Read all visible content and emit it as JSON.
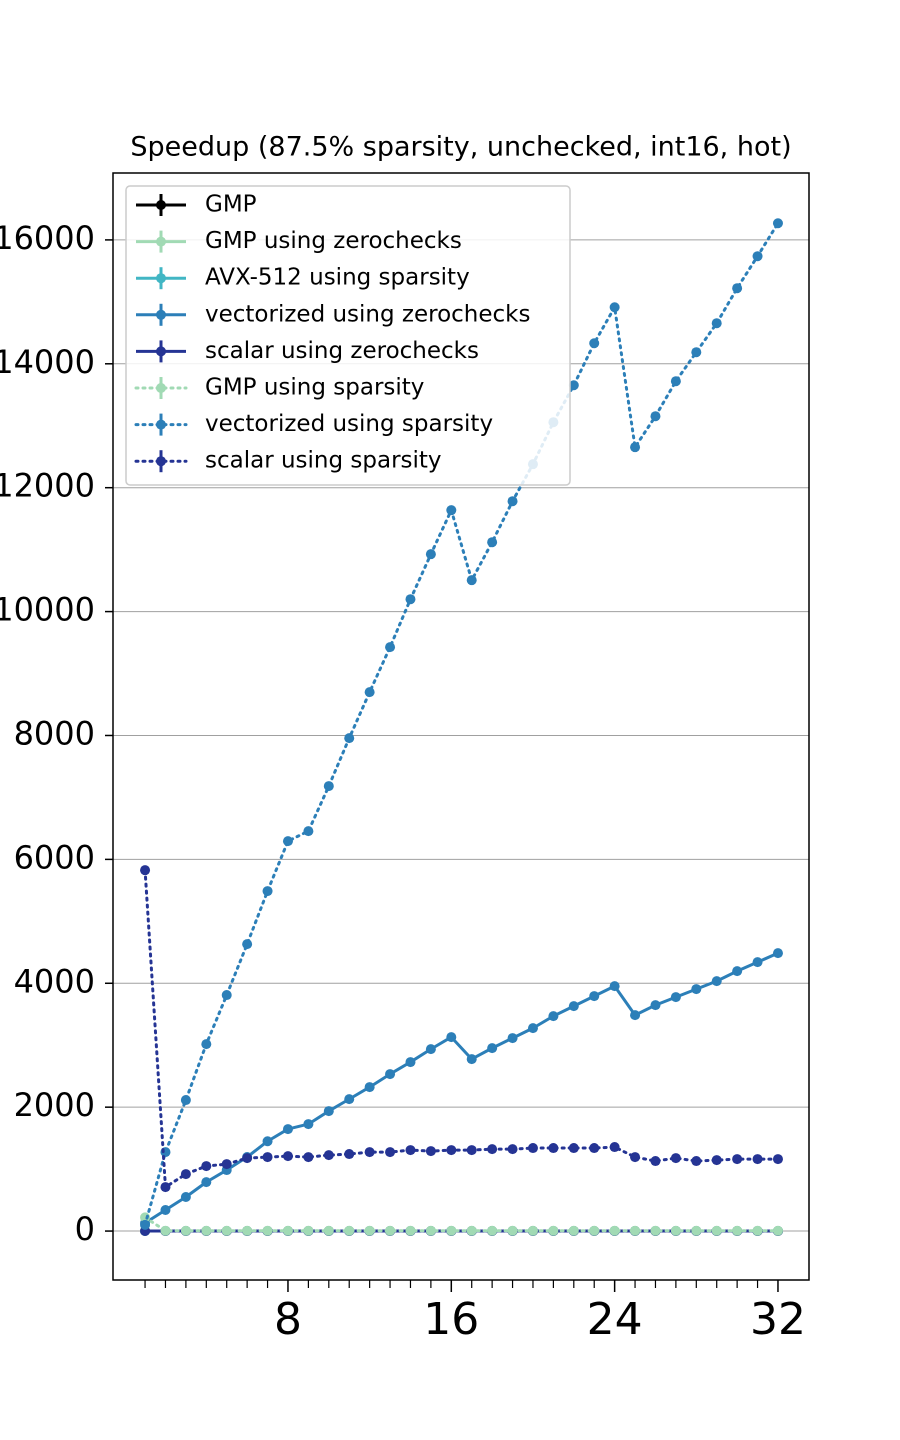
{
  "chart_data": {
    "type": "line",
    "title": "Speedup (87.5% sparsity, unchecked, int16, hot)",
    "x": [
      1,
      2,
      3,
      4,
      5,
      6,
      7,
      8,
      9,
      10,
      11,
      12,
      13,
      14,
      15,
      16,
      17,
      18,
      19,
      20,
      21,
      22,
      23,
      24,
      25,
      26,
      27,
      28,
      29,
      30,
      31,
      32
    ],
    "xlim": [
      -0.57,
      33.52
    ],
    "xticks": [
      8,
      16,
      24,
      32
    ],
    "xminorticks": [
      1,
      2,
      3,
      4,
      5,
      6,
      7,
      9,
      10,
      11,
      12,
      13,
      14,
      15,
      17,
      18,
      19,
      20,
      21,
      22,
      23,
      25,
      26,
      27,
      28,
      29,
      30,
      31
    ],
    "ylim": [
      -790,
      17080
    ],
    "yticks": [
      0,
      2000,
      4000,
      6000,
      8000,
      10000,
      12000,
      14000,
      16000
    ],
    "grid": "y",
    "legend": "upper left",
    "series": [
      {
        "name": "GMP",
        "color": "#000000",
        "style": "solid",
        "values": [
          1,
          1,
          1,
          1,
          1,
          1,
          1,
          1,
          1,
          1,
          1,
          1,
          1,
          1,
          1,
          1,
          1,
          1,
          1,
          1,
          1,
          1,
          1,
          1,
          1,
          1,
          1,
          1,
          1,
          1,
          1,
          1
        ]
      },
      {
        "name": "GMP using zerochecks",
        "color": "#a1dab4",
        "style": "solid",
        "values": [
          1,
          1,
          1,
          1,
          1,
          1,
          1,
          1,
          1,
          1,
          1,
          1,
          1,
          1,
          1,
          1,
          1,
          1,
          1,
          1,
          1,
          1,
          1,
          1,
          1,
          1,
          1,
          1,
          1,
          1,
          1,
          1
        ]
      },
      {
        "name": "AVX-512 using sparsity",
        "color": "#41b6c4",
        "style": "solid",
        "values": [
          1,
          1,
          1,
          1,
          1,
          1,
          1,
          1,
          1,
          1,
          1,
          1,
          1,
          1,
          1,
          1,
          1,
          1,
          1,
          1,
          1,
          1,
          1,
          1,
          1,
          1,
          1,
          1,
          1,
          1,
          1,
          1
        ]
      },
      {
        "name": "vectorized using zerochecks",
        "color": "#2c7fb8",
        "style": "solid",
        "values": [
          130,
          340,
          550,
          790,
          985,
          1195,
          1450,
          1646,
          1727,
          1937,
          2130,
          2324,
          2534,
          2728,
          2937,
          3131,
          2776,
          2953,
          3115,
          3276,
          3470,
          3631,
          3793,
          3954,
          3486,
          3647,
          3777,
          3906,
          4035,
          4196,
          4341,
          4487
        ]
      },
      {
        "name": "scalar using zerochecks",
        "color": "#253494",
        "style": "solid",
        "values": [
          1,
          1,
          1,
          1,
          1,
          1,
          1,
          1,
          1,
          1,
          1,
          1,
          1,
          1,
          1,
          1,
          1,
          1,
          1,
          1,
          1,
          1,
          1,
          1,
          1,
          1,
          1,
          1,
          1,
          1,
          1,
          1
        ]
      },
      {
        "name": "GMP using sparsity",
        "color": "#a1dab4",
        "style": "dotted",
        "values": [
          220,
          5,
          5,
          5,
          5,
          5,
          5,
          5,
          5,
          5,
          5,
          5,
          5,
          5,
          5,
          5,
          5,
          5,
          5,
          5,
          5,
          5,
          5,
          5,
          5,
          5,
          5,
          5,
          5,
          5,
          5,
          5
        ]
      },
      {
        "name": "vectorized using sparsity",
        "color": "#2c7fb8",
        "style": "dotted",
        "values": [
          100,
          1275,
          2115,
          3018,
          3810,
          4632,
          5488,
          6295,
          6456,
          7183,
          7957,
          8700,
          9426,
          10200,
          10927,
          11637,
          10507,
          11120,
          11782,
          12380,
          13057,
          13654,
          14332,
          14913,
          12654,
          13154,
          13719,
          14187,
          14655,
          15220,
          15737,
          16269
        ]
      },
      {
        "name": "scalar using sparsity",
        "color": "#253494",
        "style": "dotted",
        "values": [
          5826,
          710,
          920,
          1049,
          1081,
          1178,
          1194,
          1210,
          1194,
          1226,
          1243,
          1275,
          1275,
          1307,
          1291,
          1307,
          1307,
          1323,
          1323,
          1340,
          1340,
          1340,
          1340,
          1356,
          1194,
          1130,
          1178,
          1130,
          1146,
          1162,
          1162,
          1162
        ]
      }
    ]
  }
}
